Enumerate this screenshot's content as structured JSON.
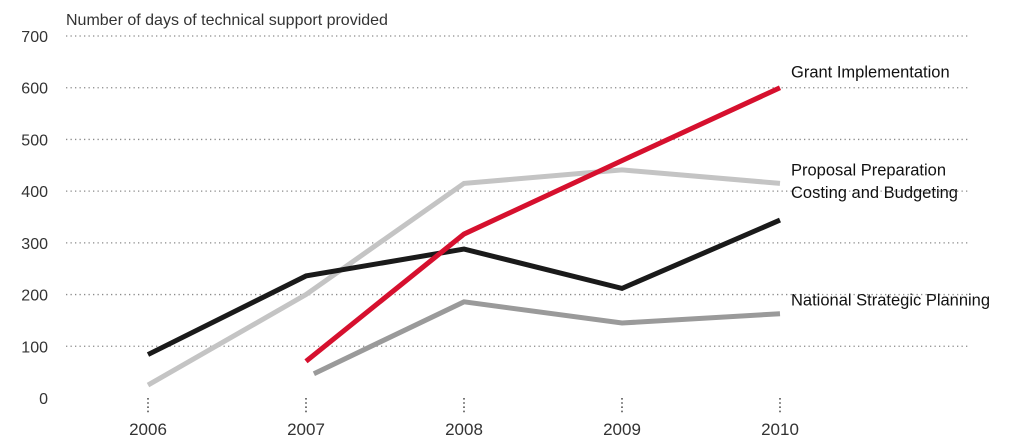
{
  "chart_data": {
    "type": "line",
    "title": "Number of days of technical support provided",
    "xlabel": "",
    "ylabel": "",
    "x": [
      2006,
      2007,
      2008,
      2009,
      2010
    ],
    "categories": [
      "2006",
      "2007",
      "2008",
      "2009",
      "2010"
    ],
    "ylim": [
      0,
      700
    ],
    "yticks": [
      "0",
      "100",
      "200",
      "300",
      "400",
      "500",
      "600",
      "700"
    ],
    "grid": true,
    "legend": "none",
    "series": [
      {
        "name": "National Strategic Planning",
        "x": [
          2007.05,
          2008,
          2009,
          2010
        ],
        "values": [
          47,
          186,
          145,
          163
        ],
        "color": "#9a9a9a"
      },
      {
        "name": "Proposal Preparation",
        "x": [
          2006,
          2007,
          2008,
          2009,
          2010
        ],
        "values": [
          25,
          200,
          415,
          441,
          415
        ],
        "color": "#c4c4c4"
      },
      {
        "name": "Costing and Budgeting",
        "x": [
          2006,
          2007,
          2008,
          2009,
          2010
        ],
        "values": [
          84,
          236,
          288,
          212,
          344
        ],
        "color": "#1a1a1a"
      },
      {
        "name": "Grant Implementation",
        "x": [
          2007,
          2008,
          2009,
          2010
        ],
        "values": [
          71,
          317,
          459,
          600
        ],
        "color": "#d6102e"
      }
    ]
  }
}
